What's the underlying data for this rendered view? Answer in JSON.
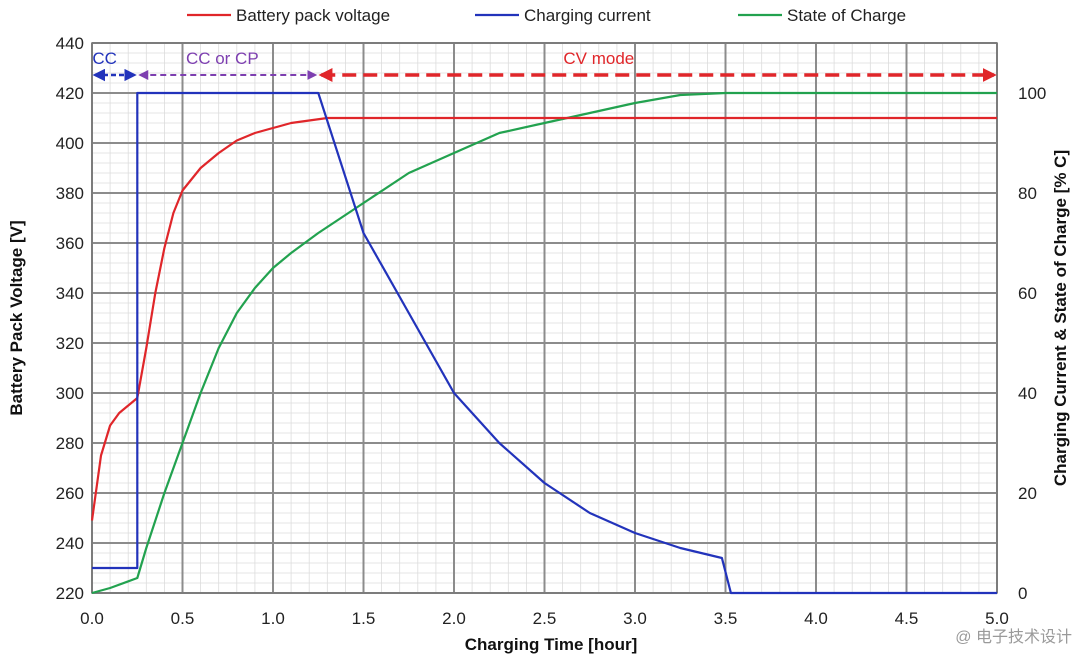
{
  "chart_data": {
    "type": "line",
    "xlabel": "Charging Time [hour]",
    "ylabel_left": "Battery Pack Voltage [V]",
    "ylabel_right": "Charging Current & State of Charge [% C]",
    "xlim": [
      0,
      5
    ],
    "ylim_left": [
      220,
      440
    ],
    "ylim_right": [
      0,
      110
    ],
    "x_ticks": [
      0,
      0.5,
      1,
      1.5,
      2,
      2.5,
      3,
      3.5,
      4,
      4.5,
      5
    ],
    "x_tick_labels": [
      "0.0",
      "0.5",
      "1.0",
      "1.5",
      "2.0",
      "2.5",
      "3.0",
      "3.5",
      "4.0",
      "4.5",
      "5.0"
    ],
    "y_left_ticks": [
      220,
      240,
      260,
      280,
      300,
      320,
      340,
      360,
      380,
      400,
      420,
      440
    ],
    "y_left_tick_labels": [
      "220",
      "240",
      "260",
      "280",
      "300",
      "320",
      "340",
      "360",
      "380",
      "400",
      "420",
      "440"
    ],
    "y_right_ticks": [
      0,
      20,
      40,
      60,
      80,
      100
    ],
    "y_right_tick_labels": [
      "0",
      "20",
      "40",
      "60",
      "80",
      "100"
    ],
    "grid": true,
    "legend_position": "top",
    "series": [
      {
        "name": "Battery pack voltage",
        "axis": "left",
        "color": "#e0262a",
        "points": [
          [
            0,
            249
          ],
          [
            0.05,
            275
          ],
          [
            0.1,
            287
          ],
          [
            0.15,
            292
          ],
          [
            0.25,
            298
          ],
          [
            0.3,
            318
          ],
          [
            0.35,
            340
          ],
          [
            0.4,
            358
          ],
          [
            0.45,
            372
          ],
          [
            0.5,
            381
          ],
          [
            0.6,
            390
          ],
          [
            0.7,
            396
          ],
          [
            0.8,
            401
          ],
          [
            0.9,
            404
          ],
          [
            1.0,
            406
          ],
          [
            1.1,
            408
          ],
          [
            1.2,
            409
          ],
          [
            1.3,
            410
          ],
          [
            1.5,
            410
          ],
          [
            5.0,
            410
          ]
        ]
      },
      {
        "name": "Charging current",
        "axis": "right",
        "color": "#2233bb",
        "points": [
          [
            0,
            5
          ],
          [
            0.25,
            5
          ],
          [
            0.25,
            100
          ],
          [
            1.25,
            100
          ],
          [
            1.5,
            72
          ],
          [
            1.75,
            56
          ],
          [
            2.0,
            40
          ],
          [
            2.25,
            30
          ],
          [
            2.5,
            22
          ],
          [
            2.75,
            16
          ],
          [
            3.0,
            12
          ],
          [
            3.25,
            9
          ],
          [
            3.48,
            7
          ],
          [
            3.53,
            0
          ],
          [
            5.0,
            0
          ]
        ]
      },
      {
        "name": "State of Charge",
        "axis": "right",
        "color": "#22a24f",
        "points": [
          [
            0,
            0
          ],
          [
            0.1,
            1
          ],
          [
            0.25,
            3
          ],
          [
            0.3,
            9
          ],
          [
            0.4,
            20
          ],
          [
            0.5,
            30
          ],
          [
            0.6,
            40
          ],
          [
            0.7,
            49
          ],
          [
            0.8,
            56
          ],
          [
            0.9,
            61
          ],
          [
            1.0,
            65
          ],
          [
            1.1,
            68
          ],
          [
            1.25,
            72
          ],
          [
            1.5,
            78
          ],
          [
            1.75,
            84
          ],
          [
            2.0,
            88
          ],
          [
            2.25,
            92
          ],
          [
            2.5,
            94
          ],
          [
            2.75,
            96
          ],
          [
            3.0,
            98
          ],
          [
            3.25,
            99.6
          ],
          [
            3.5,
            100
          ],
          [
            5.0,
            100
          ]
        ]
      }
    ],
    "annotations": [
      {
        "text": "CC",
        "color": "#2233bb",
        "x_start": 0,
        "x_end": 0.25
      },
      {
        "text": "CC or CP",
        "color": "#7d3fb0",
        "x_start": 0.25,
        "x_end": 1.25
      },
      {
        "text": "CV mode",
        "color": "#e0262a",
        "x_start": 1.25,
        "x_end": 5.0
      }
    ]
  },
  "watermark": "@ 电子技术设计"
}
